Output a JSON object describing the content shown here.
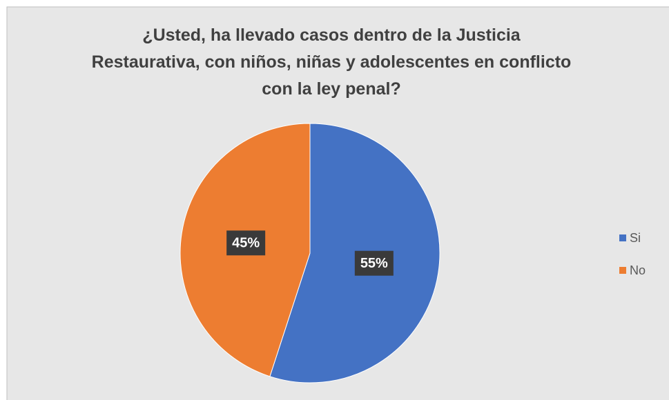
{
  "chart_data": {
    "type": "pie",
    "title": "¿Usted, ha llevado casos dentro de la Justicia Restaurativa, con niños, niñas y adolescentes en conflicto con la ley penal?",
    "categories": [
      "Si",
      "No"
    ],
    "values": [
      55,
      45
    ],
    "value_labels": [
      "55%",
      "45%"
    ],
    "colors": [
      "#4472c4",
      "#ed7d31"
    ],
    "legend": "right"
  }
}
